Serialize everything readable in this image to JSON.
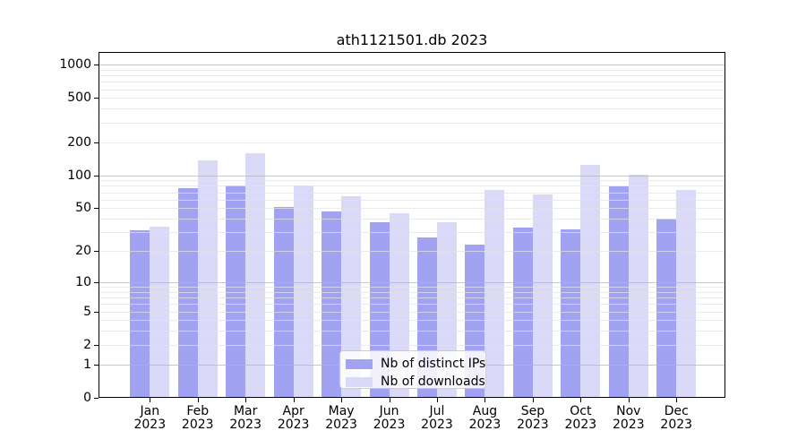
{
  "chart_data": {
    "type": "bar",
    "title": "ath1121501.db 2023",
    "xlabel": "",
    "ylabel": "",
    "categories": [
      "Jan 2023",
      "Feb 2023",
      "Mar 2023",
      "Apr 2023",
      "May 2023",
      "Jun 2023",
      "Jul 2023",
      "Aug 2023",
      "Sep 2023",
      "Oct 2023",
      "Nov 2023",
      "Dec 2023"
    ],
    "series": [
      {
        "name": "Nb of distinct IPs",
        "key": "distinct-ips",
        "color": "#a2a2f2",
        "values": [
          31,
          76,
          80,
          51,
          47,
          37,
          27,
          23,
          33,
          32,
          79,
          40
        ]
      },
      {
        "name": "Nb of downloads",
        "key": "downloads",
        "color": "#dadaf8",
        "values": [
          34,
          136,
          159,
          80,
          64,
          45,
          37,
          74,
          67,
          125,
          102,
          73
        ]
      }
    ],
    "yscale": "log10(1+count)",
    "ylim": [
      0,
      1300
    ],
    "y_ticks": [
      0,
      1,
      2,
      5,
      10,
      20,
      50,
      100,
      200,
      500,
      1000
    ],
    "grid": "horizontal major and minor gridlines, drawn over bars",
    "legend_position": "inside bottom-center",
    "colors": {
      "background": "#ffffff",
      "axis": "#000000",
      "major_grid": "#c7c7c7",
      "minor_grid": "#eaeaea"
    }
  }
}
